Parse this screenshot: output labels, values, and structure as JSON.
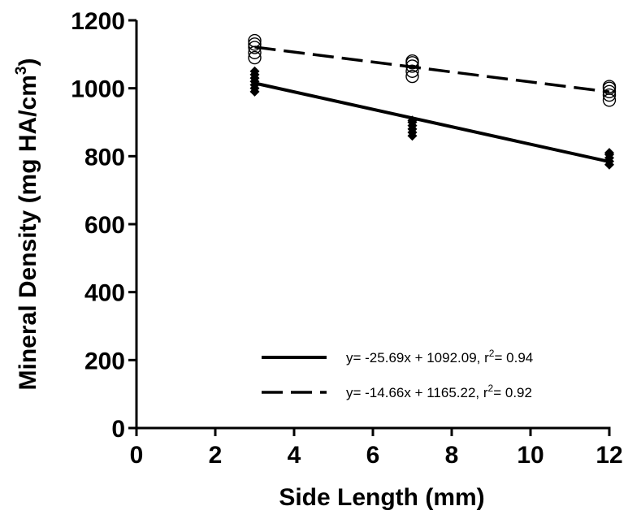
{
  "chart_data": {
    "type": "scatter",
    "xlabel": "Side Length (mm)",
    "ylabel": {
      "prefix": "Mineral Density (mg HA/cm",
      "sup": "3",
      "suffix": ")"
    },
    "xlim": [
      0,
      12
    ],
    "ylim": [
      0,
      1200
    ],
    "xticks": [
      "0",
      "2",
      "4",
      "6",
      "8",
      "10",
      "12"
    ],
    "yticks": [
      "0",
      "200",
      "400",
      "600",
      "800",
      "1000",
      "1200"
    ],
    "grid": false,
    "legend_position": "bottom-right",
    "series": [
      {
        "marker": "diamond-filled",
        "line_style": "solid",
        "fit": {
          "slope": -25.69,
          "intercept": 1092.09
        },
        "legend": {
          "prefix": "y= -25.69x + 1092.09, r",
          "sup": "2",
          "suffix": "= 0.94"
        },
        "points": [
          {
            "x": 3,
            "y": 990
          },
          {
            "x": 3,
            "y": 1000
          },
          {
            "x": 3,
            "y": 1010
          },
          {
            "x": 3,
            "y": 1020
          },
          {
            "x": 3,
            "y": 1030
          },
          {
            "x": 3,
            "y": 1040
          },
          {
            "x": 3,
            "y": 1050
          },
          {
            "x": 7,
            "y": 860
          },
          {
            "x": 7,
            "y": 870
          },
          {
            "x": 7,
            "y": 880
          },
          {
            "x": 7,
            "y": 890
          },
          {
            "x": 7,
            "y": 900
          },
          {
            "x": 7,
            "y": 905
          },
          {
            "x": 12,
            "y": 775
          },
          {
            "x": 12,
            "y": 785
          },
          {
            "x": 12,
            "y": 795
          },
          {
            "x": 12,
            "y": 805
          },
          {
            "x": 12,
            "y": 810
          }
        ]
      },
      {
        "marker": "circle-open",
        "line_style": "dashed",
        "fit": {
          "slope": -14.66,
          "intercept": 1165.22
        },
        "legend": {
          "prefix": "y= -14.66x + 1165.22, r",
          "sup": "2",
          "suffix": "= 0.92"
        },
        "points": [
          {
            "x": 3,
            "y": 1090
          },
          {
            "x": 3,
            "y": 1105
          },
          {
            "x": 3,
            "y": 1120
          },
          {
            "x": 3,
            "y": 1130
          },
          {
            "x": 3,
            "y": 1140
          },
          {
            "x": 7,
            "y": 1035
          },
          {
            "x": 7,
            "y": 1050
          },
          {
            "x": 7,
            "y": 1065
          },
          {
            "x": 7,
            "y": 1075
          },
          {
            "x": 7,
            "y": 1080
          },
          {
            "x": 12,
            "y": 965
          },
          {
            "x": 12,
            "y": 980
          },
          {
            "x": 12,
            "y": 990
          },
          {
            "x": 12,
            "y": 1000
          },
          {
            "x": 12,
            "y": 1005
          }
        ]
      }
    ]
  }
}
